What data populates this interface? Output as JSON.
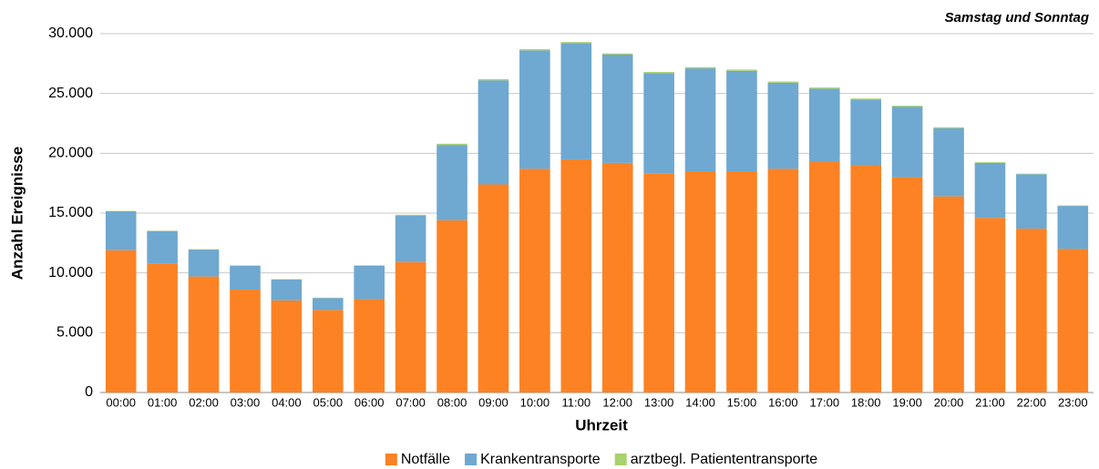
{
  "chart_data": {
    "type": "stacked_bar",
    "title": "Samstag und Sonntag",
    "x_label": "Uhrzeit",
    "y_label": "Anzahl Ereignisse",
    "categories": [
      "00:00",
      "01:00",
      "02:00",
      "03:00",
      "04:00",
      "05:00",
      "06:00",
      "07:00",
      "08:00",
      "09:00",
      "10:00",
      "11:00",
      "12:00",
      "13:00",
      "14:00",
      "15:00",
      "16:00",
      "17:00",
      "18:00",
      "19:00",
      "20:00",
      "21:00",
      "22:00",
      "23:00"
    ],
    "series": [
      {
        "name": "Notfälle",
        "color": "#fd8224",
        "values": [
          11900,
          10800,
          9700,
          8600,
          7700,
          6900,
          7800,
          10900,
          14400,
          17400,
          18700,
          19500,
          19200,
          18300,
          18500,
          18500,
          18700,
          19300,
          19000,
          18000,
          16400,
          14600,
          13700,
          12000
        ]
      },
      {
        "name": "Krankentransporte",
        "color": "#6fa8d0",
        "values": [
          3250,
          2700,
          2250,
          2000,
          1750,
          1000,
          2800,
          3900,
          6300,
          8700,
          9900,
          9700,
          9050,
          8400,
          8600,
          8400,
          7200,
          6100,
          5500,
          5900,
          5700,
          4600,
          4550,
          3600
        ]
      },
      {
        "name": "arztbegl. Patiententransporte",
        "color": "#a9d16e",
        "values": [
          30,
          30,
          30,
          30,
          30,
          30,
          40,
          60,
          100,
          100,
          100,
          100,
          100,
          100,
          100,
          100,
          100,
          100,
          80,
          80,
          80,
          60,
          50,
          40
        ]
      }
    ],
    "ylim": [
      0,
      30000
    ],
    "yticks": [
      0,
      {
        "value": 5000,
        "label": "5.000"
      },
      {
        "value": 10000,
        "label": "10.000"
      },
      {
        "value": 15000,
        "label": "15.000"
      },
      {
        "value": 20000,
        "label": "20.000"
      },
      {
        "value": 25000,
        "label": "25.000"
      },
      {
        "value": 30000,
        "label": "30.000"
      }
    ],
    "grid": true,
    "legend": "bottom"
  }
}
